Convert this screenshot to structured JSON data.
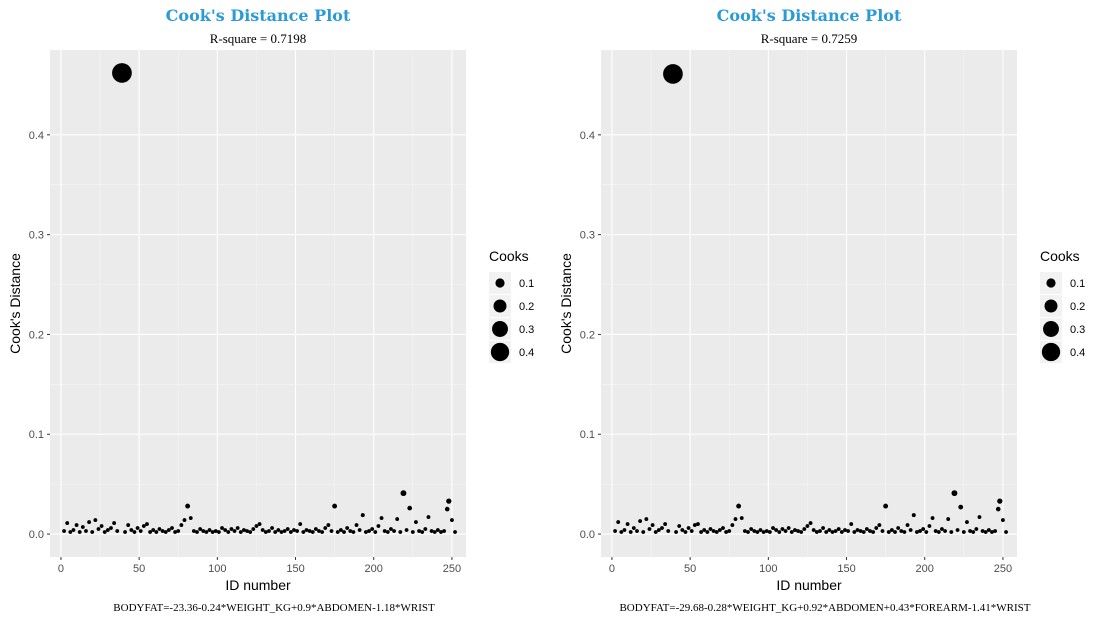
{
  "chart_data": [
    {
      "type": "scatter",
      "title": "Cook's Distance Plot",
      "subtitle": "R-square = 0.7198",
      "xlabel": "ID number",
      "ylabel": "Cook's Distance",
      "caption": "BODYFAT=-23.36-0.24*WEIGHT_KG+0.9*ABDOMEN-1.18*WRIST",
      "xlim": [
        -7,
        259
      ],
      "ylim": [
        -0.023,
        0.485
      ],
      "xticks": [
        0,
        50,
        100,
        150,
        200,
        250
      ],
      "yticks": [
        0.0,
        0.1,
        0.2,
        0.3,
        0.4
      ],
      "grid": true,
      "legend": {
        "title": "Cooks",
        "position": "right",
        "keys": [
          0.1,
          0.2,
          0.3,
          0.4
        ]
      },
      "points": [
        [
          2,
          0.003
        ],
        [
          4,
          0.011
        ],
        [
          6,
          0.002
        ],
        [
          8,
          0.004
        ],
        [
          10,
          0.009
        ],
        [
          12,
          0.002
        ],
        [
          14,
          0.007
        ],
        [
          16,
          0.003
        ],
        [
          18,
          0.012
        ],
        [
          20,
          0.002
        ],
        [
          22,
          0.014
        ],
        [
          24,
          0.005
        ],
        [
          26,
          0.008
        ],
        [
          28,
          0.002
        ],
        [
          30,
          0.004
        ],
        [
          32,
          0.006
        ],
        [
          34,
          0.011
        ],
        [
          36,
          0.003
        ],
        [
          39,
          0.462
        ],
        [
          41,
          0.002
        ],
        [
          43,
          0.009
        ],
        [
          45,
          0.004
        ],
        [
          47,
          0.002
        ],
        [
          49,
          0.006
        ],
        [
          51,
          0.003
        ],
        [
          53,
          0.008
        ],
        [
          55,
          0.01
        ],
        [
          57,
          0.002
        ],
        [
          59,
          0.004
        ],
        [
          61,
          0.002
        ],
        [
          63,
          0.005
        ],
        [
          65,
          0.003
        ],
        [
          67,
          0.002
        ],
        [
          69,
          0.004
        ],
        [
          71,
          0.006
        ],
        [
          73,
          0.002
        ],
        [
          75,
          0.003
        ],
        [
          77,
          0.009
        ],
        [
          79,
          0.014
        ],
        [
          81,
          0.028
        ],
        [
          83,
          0.016
        ],
        [
          85,
          0.003
        ],
        [
          87,
          0.002
        ],
        [
          89,
          0.005
        ],
        [
          91,
          0.003
        ],
        [
          93,
          0.002
        ],
        [
          95,
          0.004
        ],
        [
          97,
          0.002
        ],
        [
          99,
          0.003
        ],
        [
          101,
          0.002
        ],
        [
          103,
          0.006
        ],
        [
          105,
          0.004
        ],
        [
          107,
          0.002
        ],
        [
          109,
          0.005
        ],
        [
          111,
          0.003
        ],
        [
          113,
          0.006
        ],
        [
          115,
          0.002
        ],
        [
          117,
          0.004
        ],
        [
          119,
          0.003
        ],
        [
          121,
          0.002
        ],
        [
          123,
          0.005
        ],
        [
          125,
          0.008
        ],
        [
          127,
          0.01
        ],
        [
          129,
          0.004
        ],
        [
          131,
          0.002
        ],
        [
          133,
          0.003
        ],
        [
          135,
          0.006
        ],
        [
          137,
          0.002
        ],
        [
          139,
          0.004
        ],
        [
          141,
          0.002
        ],
        [
          143,
          0.003
        ],
        [
          145,
          0.005
        ],
        [
          147,
          0.002
        ],
        [
          149,
          0.004
        ],
        [
          151,
          0.003
        ],
        [
          153,
          0.01
        ],
        [
          155,
          0.002
        ],
        [
          157,
          0.004
        ],
        [
          159,
          0.003
        ],
        [
          161,
          0.002
        ],
        [
          163,
          0.005
        ],
        [
          165,
          0.003
        ],
        [
          167,
          0.002
        ],
        [
          169,
          0.006
        ],
        [
          171,
          0.009
        ],
        [
          173,
          0.003
        ],
        [
          175,
          0.028
        ],
        [
          177,
          0.002
        ],
        [
          179,
          0.004
        ],
        [
          181,
          0.002
        ],
        [
          183,
          0.006
        ],
        [
          185,
          0.003
        ],
        [
          187,
          0.002
        ],
        [
          189,
          0.009
        ],
        [
          191,
          0.004
        ],
        [
          193,
          0.019
        ],
        [
          195,
          0.002
        ],
        [
          197,
          0.003
        ],
        [
          199,
          0.005
        ],
        [
          201,
          0.002
        ],
        [
          203,
          0.008
        ],
        [
          205,
          0.016
        ],
        [
          207,
          0.003
        ],
        [
          209,
          0.002
        ],
        [
          211,
          0.005
        ],
        [
          213,
          0.003
        ],
        [
          215,
          0.015
        ],
        [
          217,
          0.002
        ],
        [
          219,
          0.041
        ],
        [
          221,
          0.004
        ],
        [
          223,
          0.026
        ],
        [
          225,
          0.002
        ],
        [
          227,
          0.012
        ],
        [
          229,
          0.003
        ],
        [
          231,
          0.002
        ],
        [
          233,
          0.005
        ],
        [
          235,
          0.017
        ],
        [
          237,
          0.003
        ],
        [
          239,
          0.002
        ],
        [
          241,
          0.004
        ],
        [
          243,
          0.002
        ],
        [
          245,
          0.003
        ],
        [
          247,
          0.025
        ],
        [
          248,
          0.033
        ],
        [
          250,
          0.014
        ],
        [
          252,
          0.002
        ]
      ]
    },
    {
      "type": "scatter",
      "title": "Cook's Distance Plot",
      "subtitle": "R-square = 0.7259",
      "xlabel": "ID number",
      "ylabel": "Cook's Distance",
      "caption": "BODYFAT=-29.68-0.28*WEIGHT_KG+0.92*ABDOMEN+0.43*FOREARM-1.41*WRIST",
      "xlim": [
        -7,
        259
      ],
      "ylim": [
        -0.023,
        0.485
      ],
      "xticks": [
        0,
        50,
        100,
        150,
        200,
        250
      ],
      "yticks": [
        0.0,
        0.1,
        0.2,
        0.3,
        0.4
      ],
      "grid": true,
      "legend": {
        "title": "Cooks",
        "position": "right",
        "keys": [
          0.1,
          0.2,
          0.3,
          0.4
        ]
      },
      "points": [
        [
          2,
          0.003
        ],
        [
          4,
          0.012
        ],
        [
          6,
          0.002
        ],
        [
          8,
          0.004
        ],
        [
          10,
          0.01
        ],
        [
          12,
          0.002
        ],
        [
          14,
          0.006
        ],
        [
          16,
          0.003
        ],
        [
          18,
          0.013
        ],
        [
          20,
          0.002
        ],
        [
          22,
          0.015
        ],
        [
          24,
          0.005
        ],
        [
          26,
          0.009
        ],
        [
          28,
          0.002
        ],
        [
          30,
          0.004
        ],
        [
          32,
          0.006
        ],
        [
          34,
          0.01
        ],
        [
          36,
          0.003
        ],
        [
          39,
          0.461
        ],
        [
          41,
          0.002
        ],
        [
          43,
          0.008
        ],
        [
          45,
          0.004
        ],
        [
          47,
          0.002
        ],
        [
          49,
          0.006
        ],
        [
          51,
          0.003
        ],
        [
          53,
          0.009
        ],
        [
          55,
          0.01
        ],
        [
          57,
          0.002
        ],
        [
          59,
          0.004
        ],
        [
          61,
          0.002
        ],
        [
          63,
          0.005
        ],
        [
          65,
          0.003
        ],
        [
          67,
          0.002
        ],
        [
          69,
          0.004
        ],
        [
          71,
          0.006
        ],
        [
          73,
          0.002
        ],
        [
          75,
          0.003
        ],
        [
          77,
          0.009
        ],
        [
          79,
          0.015
        ],
        [
          81,
          0.028
        ],
        [
          83,
          0.016
        ],
        [
          85,
          0.003
        ],
        [
          87,
          0.002
        ],
        [
          89,
          0.005
        ],
        [
          91,
          0.003
        ],
        [
          93,
          0.002
        ],
        [
          95,
          0.004
        ],
        [
          97,
          0.002
        ],
        [
          99,
          0.003
        ],
        [
          101,
          0.002
        ],
        [
          103,
          0.006
        ],
        [
          105,
          0.004
        ],
        [
          107,
          0.002
        ],
        [
          109,
          0.005
        ],
        [
          111,
          0.003
        ],
        [
          113,
          0.006
        ],
        [
          115,
          0.002
        ],
        [
          117,
          0.004
        ],
        [
          119,
          0.003
        ],
        [
          121,
          0.002
        ],
        [
          123,
          0.005
        ],
        [
          125,
          0.008
        ],
        [
          127,
          0.011
        ],
        [
          129,
          0.004
        ],
        [
          131,
          0.002
        ],
        [
          133,
          0.003
        ],
        [
          135,
          0.006
        ],
        [
          137,
          0.002
        ],
        [
          139,
          0.004
        ],
        [
          141,
          0.002
        ],
        [
          143,
          0.003
        ],
        [
          145,
          0.005
        ],
        [
          147,
          0.002
        ],
        [
          149,
          0.004
        ],
        [
          151,
          0.003
        ],
        [
          153,
          0.01
        ],
        [
          155,
          0.002
        ],
        [
          157,
          0.004
        ],
        [
          159,
          0.003
        ],
        [
          161,
          0.002
        ],
        [
          163,
          0.005
        ],
        [
          165,
          0.003
        ],
        [
          167,
          0.002
        ],
        [
          169,
          0.006
        ],
        [
          171,
          0.009
        ],
        [
          173,
          0.003
        ],
        [
          175,
          0.028
        ],
        [
          177,
          0.002
        ],
        [
          179,
          0.004
        ],
        [
          181,
          0.002
        ],
        [
          183,
          0.006
        ],
        [
          185,
          0.003
        ],
        [
          187,
          0.002
        ],
        [
          189,
          0.009
        ],
        [
          191,
          0.004
        ],
        [
          193,
          0.019
        ],
        [
          195,
          0.002
        ],
        [
          197,
          0.003
        ],
        [
          199,
          0.005
        ],
        [
          201,
          0.002
        ],
        [
          203,
          0.008
        ],
        [
          205,
          0.016
        ],
        [
          207,
          0.003
        ],
        [
          209,
          0.002
        ],
        [
          211,
          0.005
        ],
        [
          213,
          0.003
        ],
        [
          215,
          0.015
        ],
        [
          217,
          0.002
        ],
        [
          219,
          0.041
        ],
        [
          221,
          0.004
        ],
        [
          223,
          0.027
        ],
        [
          225,
          0.002
        ],
        [
          227,
          0.012
        ],
        [
          229,
          0.003
        ],
        [
          231,
          0.002
        ],
        [
          233,
          0.005
        ],
        [
          235,
          0.017
        ],
        [
          237,
          0.003
        ],
        [
          239,
          0.002
        ],
        [
          241,
          0.004
        ],
        [
          243,
          0.002
        ],
        [
          245,
          0.003
        ],
        [
          247,
          0.025
        ],
        [
          248,
          0.033
        ],
        [
          250,
          0.014
        ],
        [
          252,
          0.002
        ]
      ]
    }
  ]
}
